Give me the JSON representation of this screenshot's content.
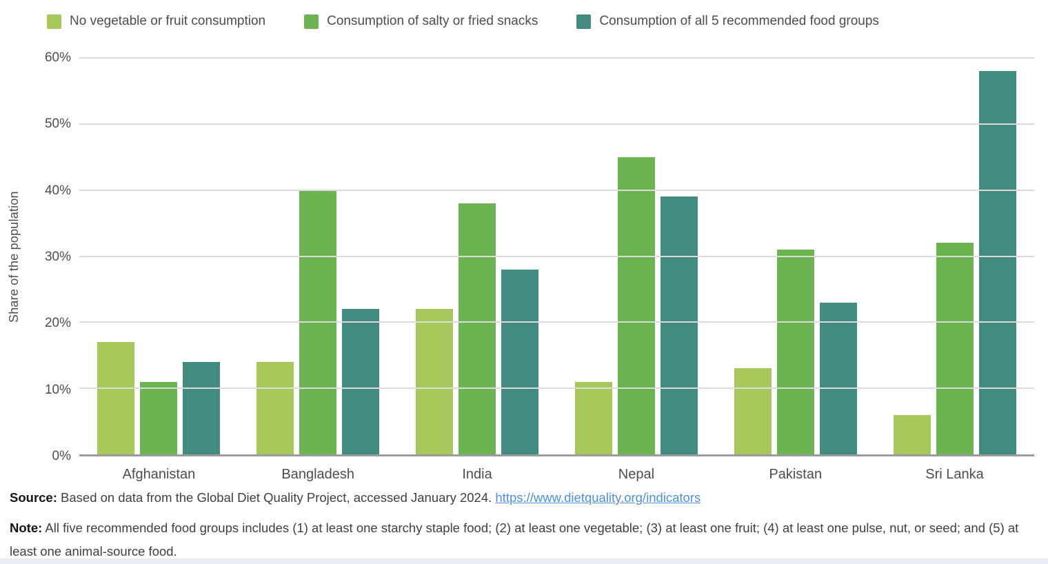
{
  "chart_data": {
    "type": "bar",
    "categories": [
      "Afghanistan",
      "Bangladesh",
      "India",
      "Nepal",
      "Pakistan",
      "Sri Lanka"
    ],
    "series": [
      {
        "name": "No vegetable or fruit consumption",
        "color": "#a6c85a",
        "values": [
          17,
          14,
          22,
          11,
          13,
          6
        ]
      },
      {
        "name": "Consumption of salty or fried snacks",
        "color": "#6cb452",
        "values": [
          11,
          40,
          38,
          45,
          31,
          32
        ]
      },
      {
        "name": "Consumption of all 5 recommended food groups",
        "color": "#428b80",
        "values": [
          14,
          22,
          28,
          39,
          23,
          58
        ]
      }
    ],
    "ylabel": "Share of the population",
    "ylim": [
      0,
      60
    ],
    "ytick_step": 10,
    "ytick_suffix": "%",
    "grid": true,
    "legend_position": "top"
  },
  "footer": {
    "source_label": "Source:",
    "source_text": " Based on data from the Global Diet Quality Project, accessed January 2024. ",
    "source_link": "https://www.dietquality.org/indicators",
    "note_label": "Note:",
    "note_text": " All five recommended food groups includes (1) at least one starchy staple food; (2) at least one vegetable; (3) at least one fruit; (4) at least one pulse, nut, or seed; and (5) at least one animal-source food."
  },
  "colors": {
    "axis_line": "#9b9b9b",
    "gridline": "#dcdcdc",
    "text": "#4d4d4d",
    "link": "#4a90e2",
    "bottom_band": "#e8edf4"
  }
}
